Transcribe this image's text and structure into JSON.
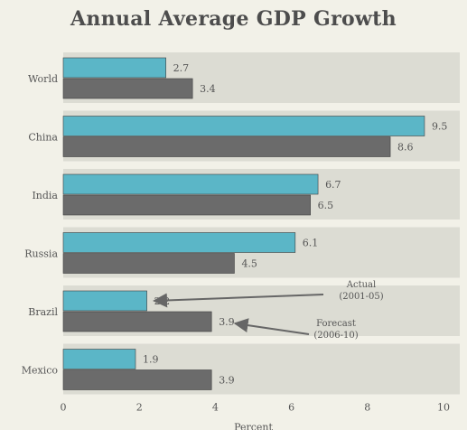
{
  "chart_data": {
    "type": "bar",
    "orientation": "horizontal",
    "title": "Annual Average GDP Growth",
    "xlabel": "Percent",
    "ylabel": "",
    "categories": [
      "World",
      "China",
      "India",
      "Russia",
      "Brazil",
      "Mexico"
    ],
    "series": [
      {
        "name": "Actual (2001-05)",
        "values": [
          2.7,
          9.5,
          6.7,
          6.1,
          2.2,
          1.9
        ]
      },
      {
        "name": "Forecast (2006-10)",
        "values": [
          3.4,
          8.6,
          6.5,
          4.5,
          3.9,
          3.9
        ]
      }
    ],
    "xlim": [
      0,
      10
    ],
    "xticks": [
      0,
      2,
      4,
      6,
      8,
      10
    ],
    "grid": false,
    "annotations": [
      {
        "lines": [
          "Actual",
          "(2001-05)"
        ],
        "target_category": "Brazil",
        "target_series": 0
      },
      {
        "lines": [
          "Forecast",
          "(2006-10)"
        ],
        "target_category": "Brazil",
        "target_series": 1
      }
    ]
  },
  "colors": {
    "actual": "#5bb6c7",
    "forecast": "#6b6b6b",
    "band": "#dcdcd3",
    "text": "#555555",
    "arrow": "#666666"
  }
}
